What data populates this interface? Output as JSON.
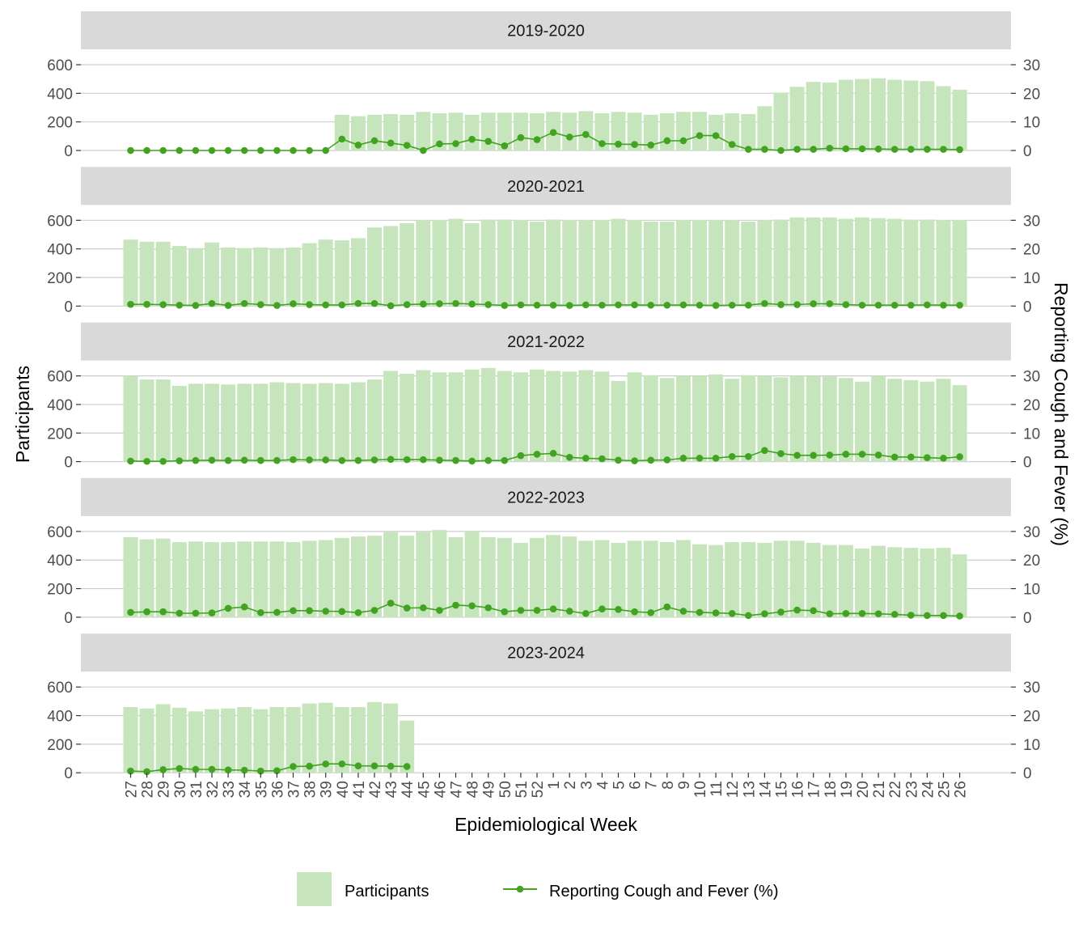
{
  "chart_data": {
    "type": "bar+line",
    "facet_titles": [
      "2019-2020",
      "2020-2021",
      "2021-2022",
      "2022-2023",
      "2023-2024"
    ],
    "categories": [
      "27",
      "28",
      "29",
      "30",
      "31",
      "32",
      "33",
      "34",
      "35",
      "36",
      "37",
      "38",
      "39",
      "40",
      "41",
      "42",
      "43",
      "44",
      "45",
      "46",
      "47",
      "48",
      "49",
      "50",
      "51",
      "52",
      "1",
      "2",
      "3",
      "4",
      "5",
      "6",
      "7",
      "8",
      "9",
      "10",
      "11",
      "12",
      "13",
      "14",
      "15",
      "16",
      "17",
      "18",
      "19",
      "20",
      "21",
      "22",
      "23",
      "24",
      "25",
      "26"
    ],
    "xlabel": "Epidemiological Week",
    "ylabel_left": "Participants",
    "ylabel_right": "Reporting Cough and Fever (%)",
    "ylim_left": [
      0,
      600
    ],
    "ylim_right": [
      0,
      30
    ],
    "yticks_left": [
      "0",
      "200",
      "400",
      "600"
    ],
    "yticks_right": [
      "0",
      "10",
      "20",
      "30"
    ],
    "colors": {
      "bar": "#c7e5bc",
      "line": "#41a321",
      "strip": "#d9d9d9",
      "grid": "#cccccc"
    },
    "legend": {
      "position": "bottom",
      "bar_label": "Participants",
      "line_label": "Reporting Cough and Fever (%)"
    },
    "panels": [
      {
        "season": "2019-2020",
        "participants": [
          null,
          null,
          null,
          null,
          null,
          null,
          null,
          null,
          null,
          null,
          null,
          null,
          null,
          250,
          240,
          250,
          255,
          250,
          270,
          260,
          265,
          250,
          265,
          265,
          265,
          260,
          270,
          265,
          275,
          260,
          270,
          265,
          250,
          260,
          270,
          270,
          250,
          260,
          255,
          310,
          405,
          445,
          480,
          475,
          495,
          500,
          505,
          495,
          490,
          485,
          450,
          425
        ],
        "cough_fever": [
          0,
          0,
          0,
          0,
          0,
          0,
          0,
          0,
          0,
          0,
          0,
          0,
          0,
          4,
          1.9,
          3.4,
          2.6,
          1.8,
          0,
          2.3,
          2.4,
          3.9,
          3.2,
          1.6,
          4.5,
          3.8,
          6.3,
          4.7,
          5.6,
          2.4,
          2.2,
          2.1,
          1.9,
          3.4,
          3.4,
          5.2,
          5.2,
          2.1,
          0.4,
          0.4,
          0,
          0.4,
          0.4,
          0.8,
          0.6,
          0.6,
          0.5,
          0.4,
          0.4,
          0.4,
          0.4,
          0.3
        ]
      },
      {
        "season": "2020-2021",
        "participants": [
          465,
          450,
          450,
          420,
          405,
          445,
          410,
          405,
          410,
          405,
          410,
          440,
          465,
          460,
          475,
          550,
          560,
          580,
          600,
          600,
          610,
          580,
          605,
          605,
          600,
          590,
          605,
          600,
          600,
          600,
          610,
          600,
          590,
          590,
          600,
          600,
          600,
          600,
          590,
          600,
          605,
          620,
          620,
          620,
          610,
          620,
          615,
          610,
          605,
          605,
          600,
          600
        ],
        "cough_fever": [
          0.6,
          0.6,
          0.5,
          0.3,
          0.2,
          0.9,
          0.2,
          0.9,
          0.5,
          0.2,
          0.8,
          0.5,
          0.4,
          0.4,
          0.9,
          0.9,
          0.1,
          0.5,
          0.7,
          0.8,
          0.9,
          0.7,
          0.5,
          0.2,
          0.4,
          0.3,
          0.3,
          0.2,
          0.4,
          0.3,
          0.4,
          0.4,
          0.3,
          0.3,
          0.4,
          0.3,
          0.2,
          0.3,
          0.3,
          0.9,
          0.5,
          0.5,
          0.8,
          0.8,
          0.5,
          0.3,
          0.3,
          0.3,
          0.3,
          0.4,
          0.3,
          0.3
        ]
      },
      {
        "season": "2021-2022",
        "participants": [
          600,
          575,
          575,
          530,
          545,
          545,
          540,
          545,
          545,
          555,
          550,
          545,
          550,
          545,
          555,
          575,
          635,
          615,
          640,
          625,
          625,
          645,
          655,
          635,
          625,
          645,
          635,
          630,
          640,
          630,
          565,
          625,
          605,
          585,
          600,
          600,
          610,
          580,
          605,
          600,
          590,
          600,
          600,
          595,
          585,
          560,
          600,
          580,
          570,
          560,
          580,
          535
        ],
        "cough_fever": [
          0.2,
          0.1,
          0.1,
          0.3,
          0.4,
          0.5,
          0.4,
          0.5,
          0.4,
          0.4,
          0.7,
          0.6,
          0.6,
          0.4,
          0.4,
          0.6,
          0.8,
          0.7,
          0.7,
          0.5,
          0.4,
          0.2,
          0.4,
          0.4,
          2.1,
          2.6,
          2.9,
          1.5,
          1.2,
          1.0,
          0.5,
          0.3,
          0.5,
          0.6,
          1.2,
          1.2,
          1.2,
          1.8,
          1.8,
          3.9,
          2.8,
          2.2,
          2.2,
          2.3,
          2.6,
          2.6,
          2.3,
          1.6,
          1.6,
          1.4,
          1.2,
          1.7
        ]
      },
      {
        "season": "2022-2023",
        "participants": [
          560,
          545,
          550,
          525,
          530,
          525,
          525,
          530,
          530,
          530,
          525,
          535,
          540,
          555,
          565,
          570,
          595,
          570,
          595,
          610,
          560,
          600,
          560,
          555,
          520,
          555,
          575,
          565,
          535,
          540,
          520,
          535,
          535,
          525,
          540,
          510,
          505,
          525,
          525,
          520,
          535,
          535,
          520,
          505,
          505,
          480,
          500,
          490,
          485,
          480,
          485,
          440
        ],
        "cough_fever": [
          1.7,
          1.9,
          1.9,
          1.4,
          1.4,
          1.5,
          3.1,
          3.6,
          1.6,
          1.7,
          2.3,
          2.3,
          2.1,
          2.0,
          1.6,
          2.4,
          4.9,
          3.2,
          3.3,
          2.4,
          4.2,
          4.0,
          3.3,
          1.9,
          2.4,
          2.4,
          2.9,
          2.1,
          1.3,
          2.9,
          2.7,
          1.9,
          1.6,
          3.6,
          2.1,
          1.7,
          1.5,
          1.3,
          0.6,
          1.2,
          1.8,
          2.5,
          2.3,
          1.2,
          1.3,
          1.3,
          1.2,
          1.0,
          0.7,
          0.6,
          0.6,
          0.4
        ]
      },
      {
        "season": "2023-2024",
        "participants": [
          460,
          450,
          480,
          455,
          430,
          445,
          450,
          460,
          445,
          460,
          460,
          485,
          490,
          460,
          460,
          495,
          485,
          365,
          null,
          null,
          null,
          null,
          null,
          null,
          null,
          null,
          null,
          null,
          null,
          null,
          null,
          null,
          null,
          null,
          null,
          null,
          null,
          null,
          null,
          null,
          null,
          null,
          null,
          null,
          null,
          null,
          null,
          null,
          null,
          null,
          null,
          null
        ],
        "cough_fever": [
          0.6,
          0.4,
          1.1,
          1.5,
          1.2,
          1.2,
          1.0,
          0.9,
          0.6,
          0.7,
          2.2,
          2.3,
          3.1,
          3.1,
          2.4,
          2.4,
          2.3,
          2.2,
          null,
          null,
          null,
          null,
          null,
          null,
          null,
          null,
          null,
          null,
          null,
          null,
          null,
          null,
          null,
          null,
          null,
          null,
          null,
          null,
          null,
          null,
          null,
          null,
          null,
          null,
          null,
          null,
          null,
          null,
          null,
          null,
          null,
          null
        ]
      }
    ]
  }
}
